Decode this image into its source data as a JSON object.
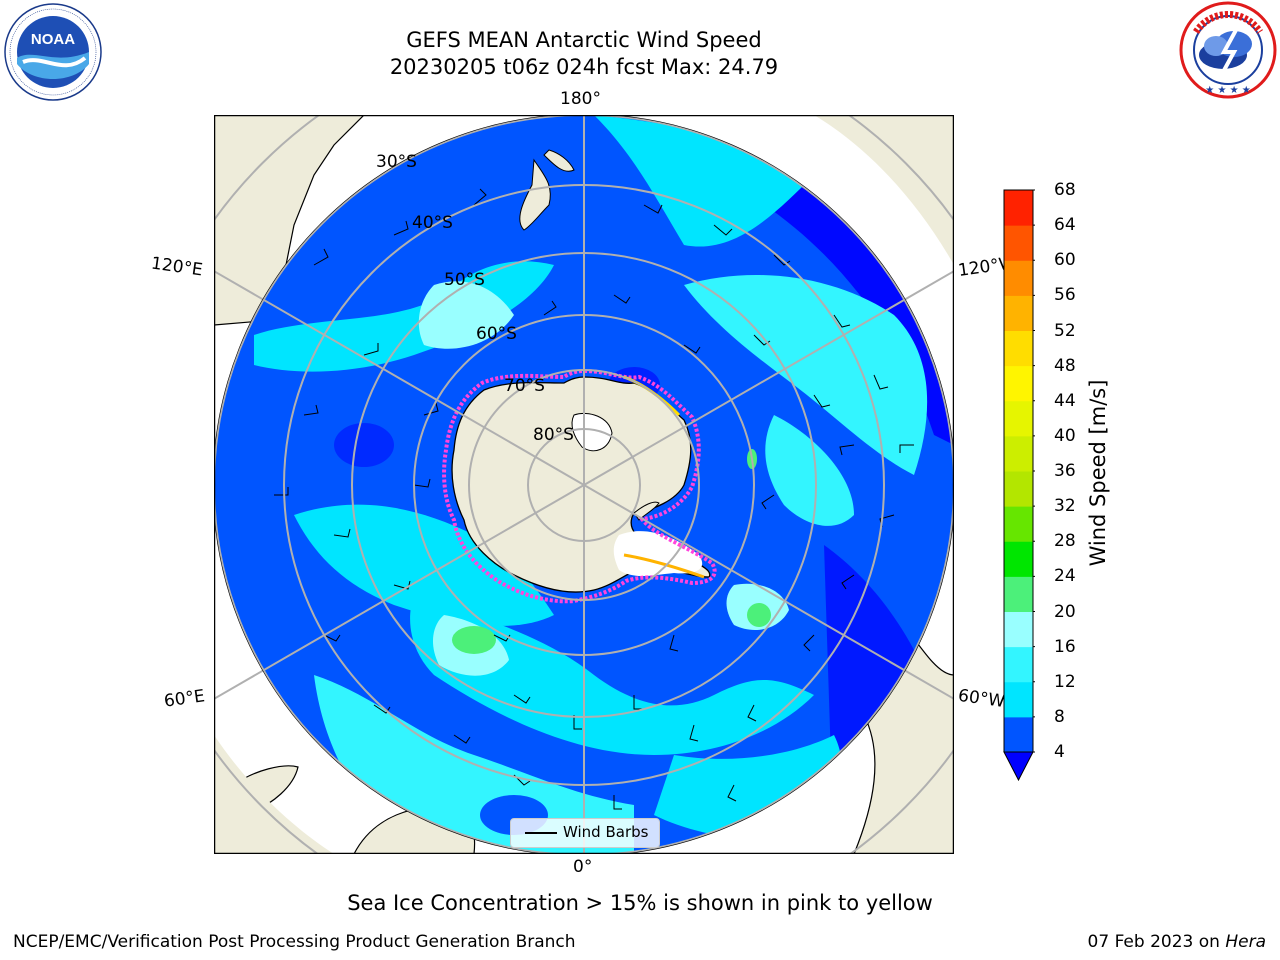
{
  "title": {
    "line1": "GEFS MEAN Antarctic Wind Speed",
    "line2": "20230205 t06z 024h fcst   Max: 24.79"
  },
  "logos": {
    "left": {
      "name": "noaa-logo",
      "text": "NOAA",
      "ring_text": "NATIONAL OCEANIC AND ATMOSPHERIC ADMINISTRATION · U.S. DEPARTMENT OF COMMERCE"
    },
    "right": {
      "name": "nws-logo",
      "ring_text": "NATIONAL WEATHER SERVICE"
    }
  },
  "map": {
    "projection": "South Polar Stereographic",
    "longitude_labels": {
      "top": "180°",
      "bottom": "0°",
      "upper_left": "120°E",
      "upper_right": "120°W",
      "lower_left": "60°E",
      "lower_right": "60°W"
    },
    "latitude_labels": [
      "30°S",
      "40°S",
      "50°S",
      "60°S",
      "70°S",
      "80°S"
    ],
    "legend": {
      "label": "Wind Barbs"
    }
  },
  "colorbar": {
    "label": "Wind Speed [m/s]",
    "ticks": [
      "4",
      "8",
      "12",
      "16",
      "20",
      "24",
      "28",
      "32",
      "36",
      "40",
      "44",
      "48",
      "52",
      "56",
      "60",
      "64",
      "68"
    ],
    "colors": [
      "#0055ff",
      "#00e5ff",
      "#33f5ff",
      "#99ffff",
      "#4cf07a",
      "#00e600",
      "#66e600",
      "#b3e600",
      "#ccee00",
      "#e6f500",
      "#fff500",
      "#ffdd00",
      "#ffb300",
      "#ff8c00",
      "#ff5500",
      "#ff2200",
      "#ff0000"
    ],
    "extend_color": "#0000ff"
  },
  "colors": {
    "land": "#eeecda",
    "ocean_low": "#0000ff",
    "ocean_mid": "#0055ff",
    "grid": "#b0b0b0",
    "sea_ice_low": "#ff44dd",
    "sea_ice_high": "#ffff66"
  },
  "footer": {
    "note": "Sea Ice Concentration > 15% is shown in pink to yellow",
    "left": "NCEP/EMC/Verification Post Processing Product Generation Branch",
    "right_date": "07 Feb 2023 on ",
    "right_machine": "Hera"
  }
}
